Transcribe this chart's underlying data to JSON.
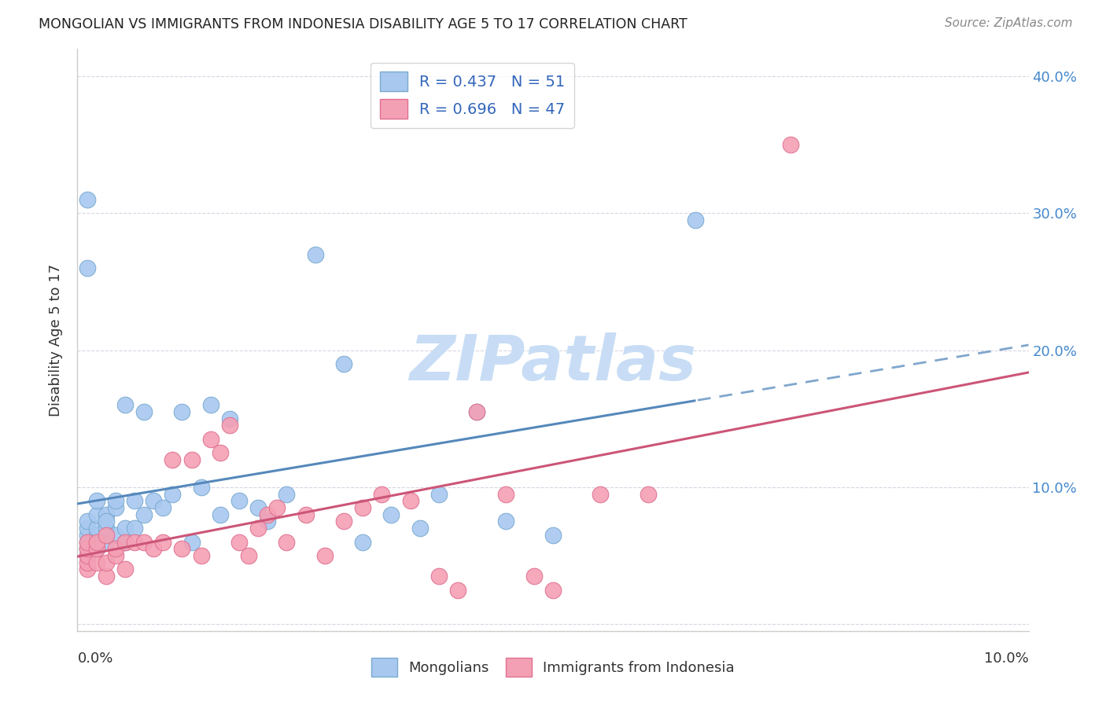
{
  "title": "MONGOLIAN VS IMMIGRANTS FROM INDONESIA DISABILITY AGE 5 TO 17 CORRELATION CHART",
  "source": "Source: ZipAtlas.com",
  "ylabel": "Disability Age 5 to 17",
  "xlim": [
    0.0,
    0.1
  ],
  "ylim": [
    -0.005,
    0.42
  ],
  "yticks": [
    0.0,
    0.1,
    0.2,
    0.3,
    0.4
  ],
  "ytick_labels": [
    "",
    "10.0%",
    "20.0%",
    "30.0%",
    "40.0%"
  ],
  "legend_mongolians": "Mongolians",
  "legend_indonesia": "Immigrants from Indonesia",
  "R_mongolian": 0.437,
  "N_mongolian": 51,
  "R_indonesia": 0.696,
  "N_indonesia": 47,
  "color_mongolian": "#a8c8f0",
  "color_indonesia": "#f4a0b4",
  "edge_mongolian": "#7aaad0",
  "edge_indonesia": "#e07090",
  "color_line_mongolian": "#5588bb",
  "color_line_indonesia": "#cc5577",
  "watermark_color": "#c8ddf5",
  "mongolian_x": [
    0.001,
    0.001,
    0.001,
    0.001,
    0.001,
    0.001,
    0.001,
    0.001,
    0.002,
    0.002,
    0.002,
    0.002,
    0.002,
    0.002,
    0.003,
    0.003,
    0.003,
    0.003,
    0.004,
    0.004,
    0.004,
    0.005,
    0.005,
    0.005,
    0.006,
    0.006,
    0.007,
    0.007,
    0.008,
    0.009,
    0.01,
    0.011,
    0.012,
    0.013,
    0.014,
    0.015,
    0.016,
    0.017,
    0.019,
    0.02,
    0.022,
    0.025,
    0.028,
    0.03,
    0.033,
    0.036,
    0.038,
    0.042,
    0.045,
    0.05,
    0.065
  ],
  "mongolian_y": [
    0.05,
    0.055,
    0.06,
    0.065,
    0.07,
    0.075,
    0.26,
    0.31,
    0.055,
    0.06,
    0.065,
    0.07,
    0.08,
    0.09,
    0.06,
    0.07,
    0.08,
    0.075,
    0.065,
    0.085,
    0.09,
    0.06,
    0.07,
    0.16,
    0.07,
    0.09,
    0.08,
    0.155,
    0.09,
    0.085,
    0.095,
    0.155,
    0.06,
    0.1,
    0.16,
    0.08,
    0.15,
    0.09,
    0.085,
    0.075,
    0.095,
    0.27,
    0.19,
    0.06,
    0.08,
    0.07,
    0.095,
    0.155,
    0.075,
    0.065,
    0.295
  ],
  "indonesia_x": [
    0.001,
    0.001,
    0.001,
    0.001,
    0.001,
    0.002,
    0.002,
    0.002,
    0.003,
    0.003,
    0.003,
    0.004,
    0.004,
    0.005,
    0.005,
    0.006,
    0.007,
    0.008,
    0.009,
    0.01,
    0.011,
    0.012,
    0.013,
    0.014,
    0.015,
    0.016,
    0.017,
    0.018,
    0.019,
    0.02,
    0.021,
    0.022,
    0.024,
    0.026,
    0.028,
    0.03,
    0.032,
    0.035,
    0.038,
    0.04,
    0.042,
    0.045,
    0.048,
    0.05,
    0.055,
    0.06,
    0.075
  ],
  "indonesia_y": [
    0.04,
    0.045,
    0.05,
    0.055,
    0.06,
    0.045,
    0.055,
    0.06,
    0.035,
    0.045,
    0.065,
    0.05,
    0.055,
    0.04,
    0.06,
    0.06,
    0.06,
    0.055,
    0.06,
    0.12,
    0.055,
    0.12,
    0.05,
    0.135,
    0.125,
    0.145,
    0.06,
    0.05,
    0.07,
    0.08,
    0.085,
    0.06,
    0.08,
    0.05,
    0.075,
    0.085,
    0.095,
    0.09,
    0.035,
    0.025,
    0.155,
    0.095,
    0.035,
    0.025,
    0.095,
    0.095,
    0.35
  ]
}
